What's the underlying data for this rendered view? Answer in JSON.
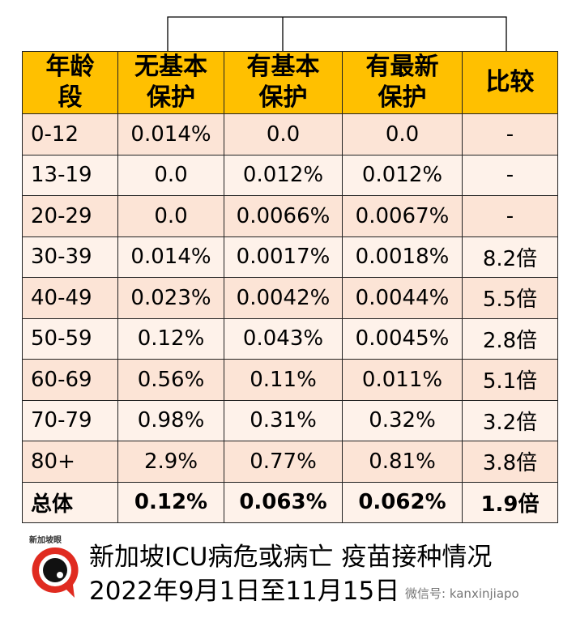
{
  "table": {
    "headers": [
      "年龄\n段",
      "无基本\n保护",
      "有基本\n保护",
      "有最新\n保护",
      "比较"
    ],
    "rows": [
      [
        "0-12",
        "0.014%",
        "0.0",
        "0.0",
        "-"
      ],
      [
        "13-19",
        "0.0",
        "0.012%",
        "0.012%",
        "-"
      ],
      [
        "20-29",
        "0.0",
        "0.0066%",
        "0.0067%",
        "-"
      ],
      [
        "30-39",
        "0.014%",
        "0.0017%",
        "0.0018%",
        "8.2倍"
      ],
      [
        "40-49",
        "0.023%",
        "0.0042%",
        "0.0044%",
        "5.5倍"
      ],
      [
        "50-59",
        "0.12%",
        "0.043%",
        "0.0045%",
        "2.8倍"
      ],
      [
        "60-69",
        "0.56%",
        "0.11%",
        "0.011%",
        "5.1倍"
      ],
      [
        "70-79",
        "0.98%",
        "0.31%",
        "0.32%",
        "3.2倍"
      ],
      [
        "80+",
        "2.9%",
        "0.77%",
        "0.81%",
        "3.8倍"
      ],
      [
        "总体",
        "0.12%",
        "0.063%",
        "0.062%",
        "1.9倍"
      ]
    ]
  },
  "footer": {
    "logo_text": "新加坡眼®",
    "title": "新加坡ICU病危或病亡 疫苗接种情况",
    "date_range": "2022年9月1日至11月15日",
    "wechat": "微信号: kanxinjiapo"
  },
  "colors": {
    "header": "#FFC000",
    "row_odd": "#FCE4D6",
    "row_even": "#FEF2EA",
    "logo_red": "#E02B20"
  }
}
